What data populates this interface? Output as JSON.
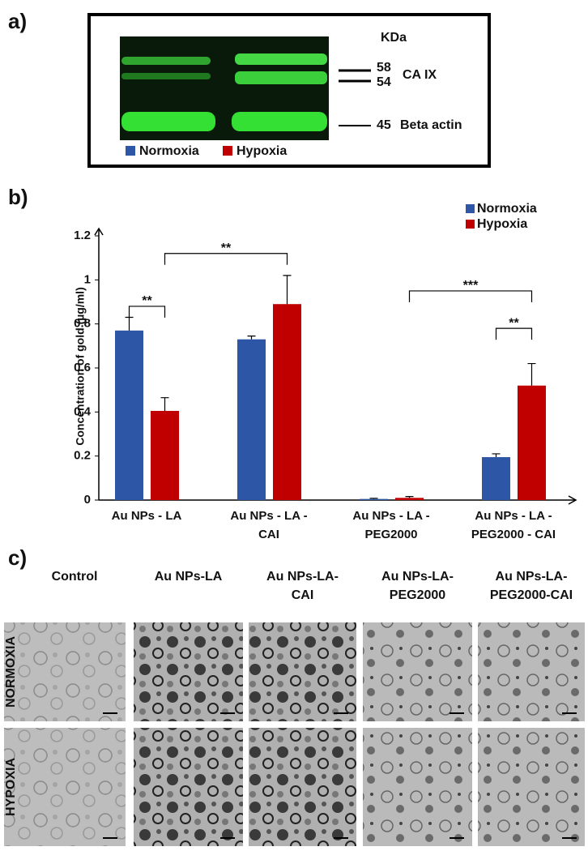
{
  "panel_a": {
    "label": "a)",
    "unit": "KDa",
    "markers": [
      "58",
      "54",
      "45"
    ],
    "band_labels": [
      "CA IX",
      "Beta actin"
    ],
    "legend": [
      "Normoxia",
      "Hypoxia"
    ]
  },
  "chart_data": {
    "type": "bar",
    "label": "b)",
    "ylabel": "Concentration of gold (µg/ml)",
    "categories": [
      [
        "Au NPs - LA"
      ],
      [
        "Au NPs - LA -",
        "CAI"
      ],
      [
        "Au NPs - LA -",
        "PEG2000"
      ],
      [
        "Au NPs - LA -",
        "PEG2000 - CAI"
      ]
    ],
    "series": [
      {
        "name": "Normoxia",
        "color": "#2e56a6",
        "values": [
          0.77,
          0.73,
          0.005,
          0.195
        ],
        "errors": [
          0.06,
          0.015,
          0.003,
          0.015
        ]
      },
      {
        "name": "Hypoxia",
        "color": "#c00000",
        "values": [
          0.405,
          0.89,
          0.01,
          0.52
        ],
        "errors": [
          0.06,
          0.13,
          0.006,
          0.1
        ]
      }
    ],
    "ylim": [
      0,
      1.2
    ],
    "yticks": [
      0,
      0.2,
      0.4,
      0.6,
      0.8,
      1,
      1.2
    ],
    "legend": "upper right",
    "annotations": [
      {
        "text": "**",
        "from": [
          0,
          0
        ],
        "to": [
          1,
          0
        ],
        "y": 0.88
      },
      {
        "text": "**",
        "from": [
          1,
          0
        ],
        "to": [
          1,
          1
        ],
        "y": 1.12
      },
      {
        "text": "***",
        "from": [
          1,
          2
        ],
        "to": [
          1,
          3
        ],
        "y": 0.95
      },
      {
        "text": "**",
        "from": [
          0,
          3
        ],
        "to": [
          1,
          3
        ],
        "y": 0.78
      }
    ]
  },
  "panel_c": {
    "label": "c)",
    "columns": [
      [
        "Control"
      ],
      [
        "Au NPs-LA"
      ],
      [
        "Au NPs-LA-",
        "CAI"
      ],
      [
        "Au NPs-LA-",
        "PEG2000"
      ],
      [
        "Au NPs-LA-",
        "PEG2000-CAI"
      ]
    ],
    "rows": [
      "NORMOXIA",
      "HYPOXIA"
    ]
  }
}
